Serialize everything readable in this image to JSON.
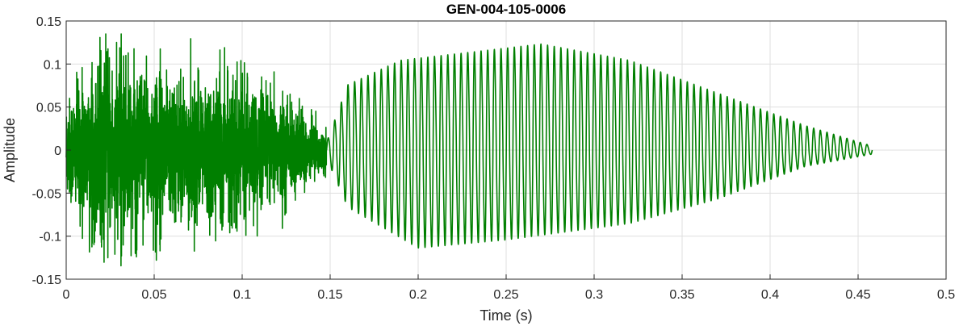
{
  "chart_data": {
    "type": "line",
    "title": "GEN-004-105-0006",
    "xlabel": "Time (s)",
    "ylabel": "Amplitude",
    "xlim": [
      0,
      0.5
    ],
    "ylim": [
      -0.15,
      0.15
    ],
    "x_ticks": [
      0,
      0.05,
      0.1,
      0.15,
      0.2,
      0.25,
      0.3,
      0.35,
      0.4,
      0.45,
      0.5
    ],
    "x_tick_labels": [
      "0",
      "0.05",
      "0.1",
      "0.15",
      "0.2",
      "0.25",
      "0.3",
      "0.35",
      "0.4",
      "0.45",
      "0.5"
    ],
    "y_ticks": [
      -0.15,
      -0.1,
      -0.05,
      0,
      0.05,
      0.1,
      0.15
    ],
    "y_tick_labels": [
      "-0.15",
      "-0.1",
      "-0.05",
      "0",
      "0.05",
      "0.1",
      "0.15"
    ],
    "grid": true,
    "series": [
      {
        "color": "#007f00",
        "duration": 0.458,
        "segments": [
          {
            "kind": "noise",
            "t_start": 0.0,
            "t_end": 0.148,
            "envelope": [
              [
                0.0,
                0.055
              ],
              [
                0.02,
                0.1
              ],
              [
                0.06,
                0.075
              ],
              [
                0.1,
                0.07
              ],
              [
                0.13,
                0.05
              ],
              [
                0.148,
                0.02
              ]
            ],
            "peak_max": 0.135,
            "peak_min": -0.137
          },
          {
            "kind": "tone",
            "t_start": 0.148,
            "t_end": 0.458,
            "cycles": 82,
            "envelope_max": [
              [
                0.148,
                0.01
              ],
              [
                0.16,
                0.08
              ],
              [
                0.19,
                0.11
              ],
              [
                0.27,
                0.13
              ],
              [
                0.32,
                0.11
              ],
              [
                0.37,
                0.07
              ],
              [
                0.42,
                0.03
              ],
              [
                0.458,
                0.005
              ]
            ],
            "envelope_min": [
              [
                0.148,
                -0.01
              ],
              [
                0.16,
                -0.07
              ],
              [
                0.2,
                -0.12
              ],
              [
                0.25,
                -0.11
              ],
              [
                0.32,
                -0.09
              ],
              [
                0.37,
                -0.06
              ],
              [
                0.42,
                -0.02
              ],
              [
                0.458,
                -0.005
              ]
            ]
          }
        ]
      }
    ]
  }
}
